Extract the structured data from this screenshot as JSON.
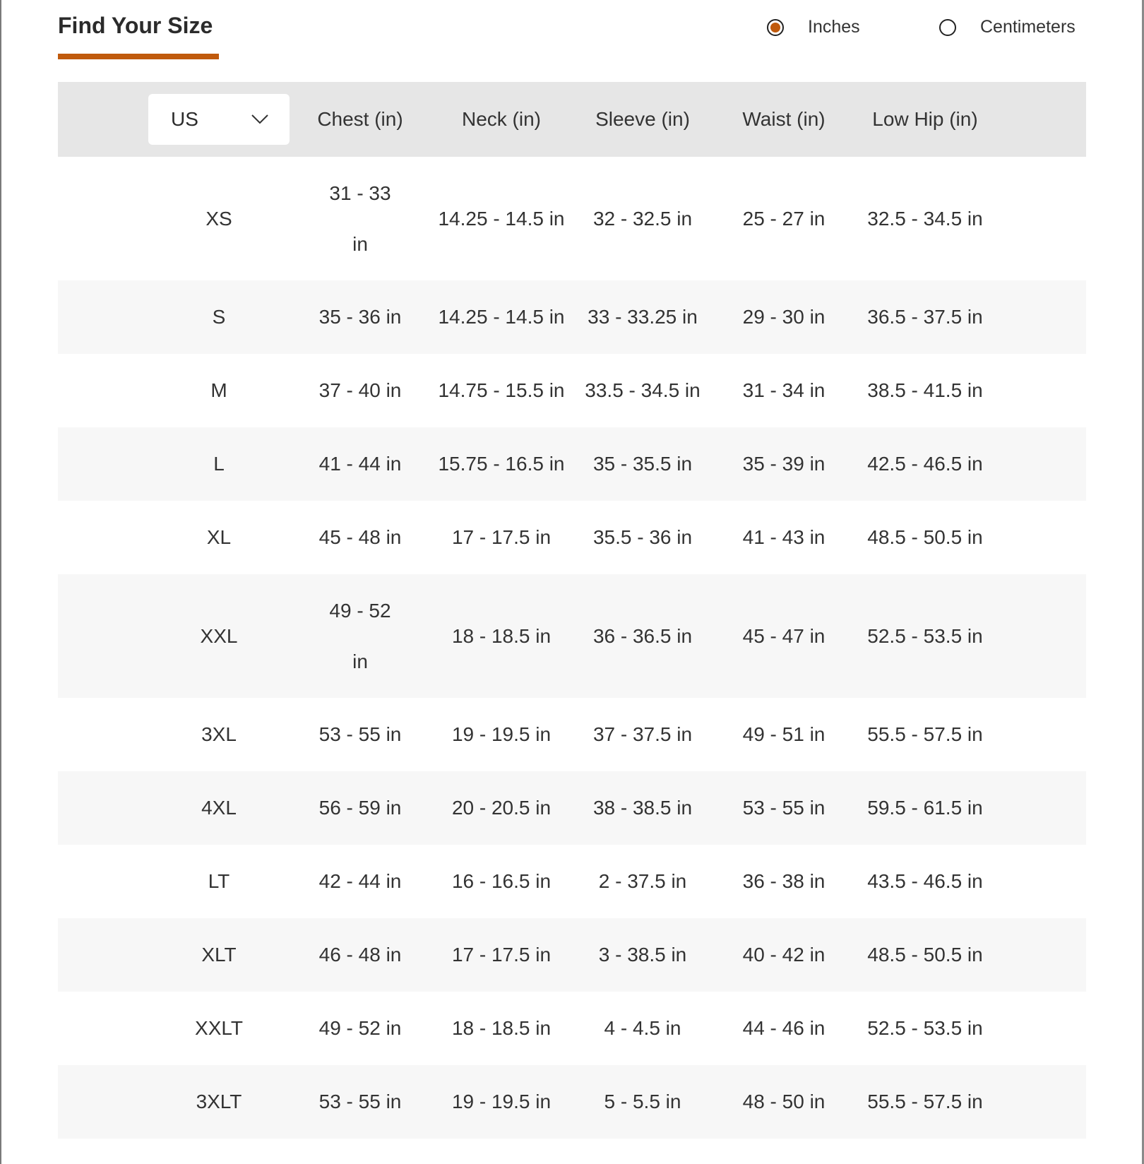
{
  "title": "Find Your Size",
  "accent_color": "#c05a0c",
  "units": {
    "options": [
      {
        "label": "Inches",
        "selected": true
      },
      {
        "label": "Centimeters",
        "selected": false
      }
    ]
  },
  "table": {
    "region_select": {
      "value": "US",
      "icon": "chevron-down-icon"
    },
    "columns": [
      "Chest (in)",
      "Neck (in)",
      "Sleeve (in)",
      "Waist (in)",
      "Low Hip (in)"
    ],
    "rows": [
      {
        "size": "XS",
        "values": [
          "31 - 33 in",
          "14.25 - 14.5 in",
          "32 - 32.5 in",
          "25 - 27 in",
          "32.5 - 34.5 in"
        ]
      },
      {
        "size": "S",
        "values": [
          "35 - 36 in",
          "14.25 - 14.5 in",
          "33 - 33.25 in",
          "29 - 30 in",
          "36.5 - 37.5 in"
        ]
      },
      {
        "size": "M",
        "values": [
          "37 - 40 in",
          "14.75 - 15.5 in",
          "33.5 - 34.5 in",
          "31 - 34 in",
          "38.5 - 41.5 in"
        ]
      },
      {
        "size": "L",
        "values": [
          "41 - 44 in",
          "15.75 - 16.5 in",
          "35 - 35.5 in",
          "35 - 39 in",
          "42.5 - 46.5 in"
        ]
      },
      {
        "size": "XL",
        "values": [
          "45 - 48 in",
          "17 - 17.5 in",
          "35.5 - 36 in",
          "41 - 43 in",
          "48.5 - 50.5 in"
        ]
      },
      {
        "size": "XXL",
        "values": [
          "49 - 52 in",
          "18 - 18.5 in",
          "36 - 36.5 in",
          "45 - 47 in",
          "52.5 - 53.5 in"
        ]
      },
      {
        "size": "3XL",
        "values": [
          "53 - 55 in",
          "19 - 19.5 in",
          "37 - 37.5 in",
          "49 - 51 in",
          "55.5 - 57.5 in"
        ]
      },
      {
        "size": "4XL",
        "values": [
          "56 - 59 in",
          "20 - 20.5 in",
          "38 - 38.5 in",
          "53 - 55 in",
          "59.5 - 61.5 in"
        ]
      },
      {
        "size": "LT",
        "values": [
          "42 - 44 in",
          "16 - 16.5 in",
          "2 - 37.5 in",
          "36 - 38 in",
          "43.5 - 46.5 in"
        ]
      },
      {
        "size": "XLT",
        "values": [
          "46 - 48 in",
          "17 - 17.5 in",
          "3 - 38.5 in",
          "40 - 42 in",
          "48.5 - 50.5 in"
        ]
      },
      {
        "size": "XXLT",
        "values": [
          "49 - 52 in",
          "18 - 18.5 in",
          "4 - 4.5 in",
          "44 - 46 in",
          "52.5 - 53.5 in"
        ]
      },
      {
        "size": "3XLT",
        "values": [
          "53 - 55 in",
          "19 - 19.5 in",
          "5 - 5.5 in",
          "48 - 50 in",
          "55.5 - 57.5 in"
        ]
      }
    ]
  }
}
